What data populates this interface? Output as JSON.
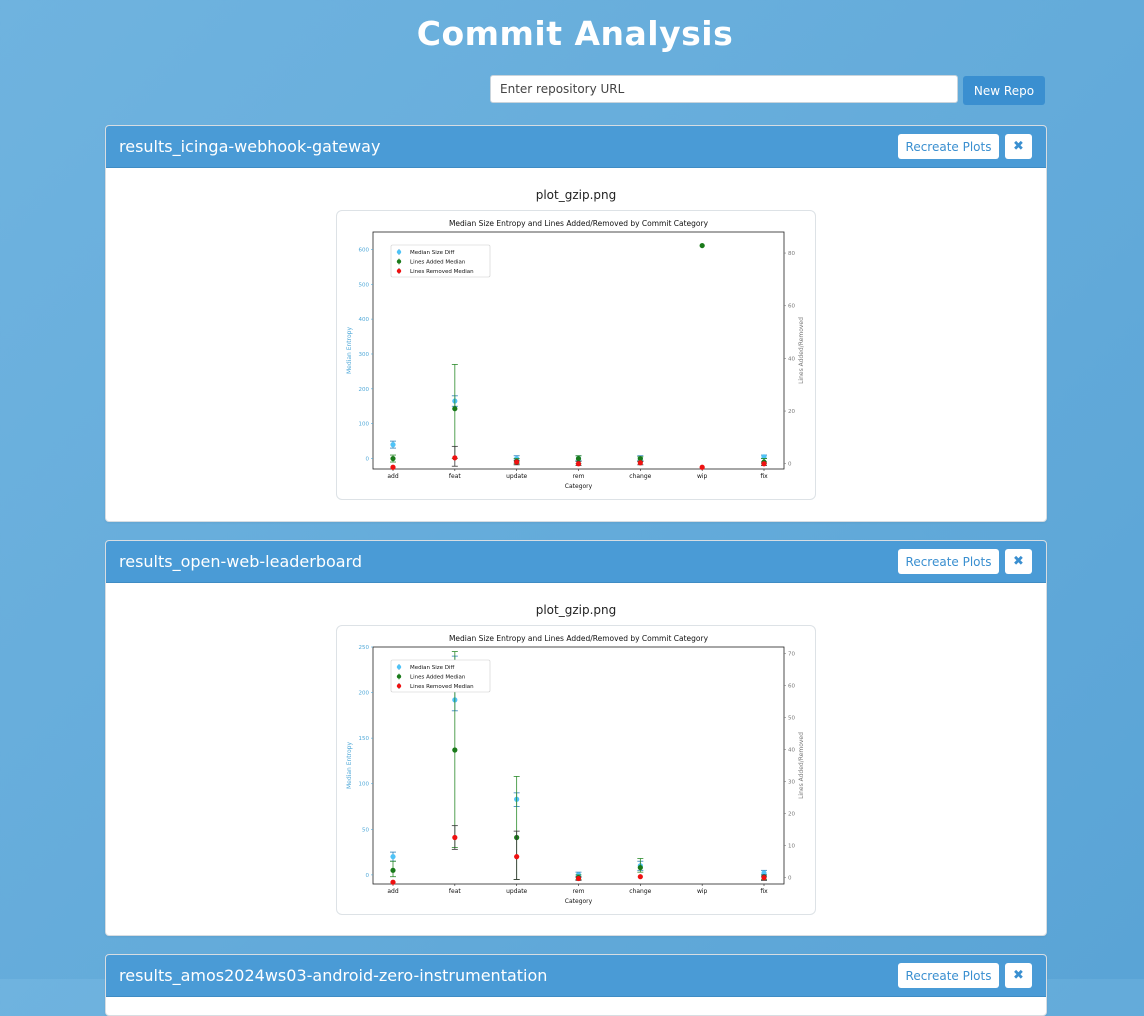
{
  "page": {
    "title": "Commit Analysis"
  },
  "repo_form": {
    "placeholder": "Enter repository URL",
    "button_label": "New Repo"
  },
  "results": [
    {
      "title": "results_icinga-webhook-gateway",
      "recreate_label": "Recreate Plots",
      "close_glyph": "✖",
      "plot_name": "plot_gzip.png",
      "chart_data": {
        "type": "scatter",
        "title": "Median Size Entropy and Lines Added/Removed by Commit Category",
        "xlabel": "Category",
        "ylabel": "Median Entropy",
        "y2label": "Lines Added/Removed",
        "categories": [
          "add",
          "feat",
          "update",
          "rem",
          "change",
          "wip",
          "fix"
        ],
        "ylim": [
          -30,
          650
        ],
        "yticks": [
          0,
          100,
          200,
          300,
          400,
          500,
          600
        ],
        "y2lim": [
          -2,
          88
        ],
        "y2ticks": [
          0,
          20,
          40,
          60,
          80
        ],
        "legend": [
          "Median Size Diff",
          "Lines Added Median",
          "Lines Removed Median"
        ],
        "legend_position": "top-left",
        "series": [
          {
            "name": "Median Size Diff",
            "axis": "left",
            "color": "#4fc3f7",
            "values": [
              40,
              165,
              0,
              0,
              0,
              null,
              5
            ],
            "err_low": [
              30,
              150,
              -10,
              -5,
              -5,
              null,
              0
            ],
            "err_high": [
              50,
              180,
              8,
              8,
              8,
              null,
              10
            ]
          },
          {
            "name": "Lines Added Median",
            "axis": "left",
            "color": "#1a7a1a",
            "values": [
              0,
              143,
              -8,
              0,
              0,
              611,
              -10
            ],
            "err_low": [
              -10,
              0,
              -15,
              -15,
              -8,
              611,
              -15
            ],
            "err_high": [
              10,
              270,
              0,
              8,
              5,
              611,
              0
            ]
          },
          {
            "name": "Lines Removed Median",
            "axis": "left",
            "color": "#ee1111",
            "values": [
              -25,
              2,
              -10,
              -15,
              -12,
              -25,
              -15
            ],
            "err_low": [
              -25,
              -22,
              -18,
              -20,
              -18,
              -25,
              -20
            ],
            "err_high": [
              -25,
              35,
              -5,
              -8,
              -8,
              -25,
              -10
            ]
          }
        ]
      }
    },
    {
      "title": "results_open-web-leaderboard",
      "recreate_label": "Recreate Plots",
      "close_glyph": "✖",
      "plot_name": "plot_gzip.png",
      "chart_data": {
        "type": "scatter",
        "title": "Median Size Entropy and Lines Added/Removed by Commit Category",
        "xlabel": "Category",
        "ylabel": "Median Entropy",
        "y2label": "Lines Added/Removed",
        "categories": [
          "add",
          "feat",
          "update",
          "rem",
          "change",
          "wip",
          "fix"
        ],
        "ylim": [
          -10,
          250
        ],
        "yticks": [
          0,
          50,
          100,
          150,
          200,
          250
        ],
        "y2lim": [
          -2,
          72
        ],
        "y2ticks": [
          0,
          10,
          20,
          30,
          40,
          50,
          60,
          70
        ],
        "legend": [
          "Median Size Diff",
          "Lines Added Median",
          "Lines Removed Median"
        ],
        "legend_position": "top-left",
        "series": [
          {
            "name": "Median Size Diff",
            "axis": "left",
            "color": "#4fc3f7",
            "values": [
              20,
              192,
              83,
              0,
              10,
              null,
              2
            ],
            "err_low": [
              15,
              180,
              75,
              -3,
              5,
              null,
              -2
            ],
            "err_high": [
              25,
              240,
              90,
              3,
              15,
              null,
              5
            ]
          },
          {
            "name": "Lines Added Median",
            "axis": "left",
            "color": "#1a7a1a",
            "values": [
              5,
              137,
              41,
              -3,
              8,
              null,
              -2
            ],
            "err_low": [
              -2,
              30,
              -5,
              -5,
              3,
              null,
              -5
            ],
            "err_high": [
              15,
              245,
              108,
              0,
              18,
              null,
              0
            ]
          },
          {
            "name": "Lines Removed Median",
            "axis": "left",
            "color": "#ee1111",
            "values": [
              -8,
              41,
              20,
              -4,
              -2,
              null,
              -3
            ],
            "err_low": [
              -8,
              28,
              -5,
              -6,
              -2,
              null,
              -6
            ],
            "err_high": [
              -8,
              54,
              48,
              -2,
              -2,
              null,
              0
            ]
          }
        ]
      }
    },
    {
      "title": "results_amos2024ws03-android-zero-instrumentation",
      "recreate_label": "Recreate Plots",
      "close_glyph": "✖"
    }
  ]
}
